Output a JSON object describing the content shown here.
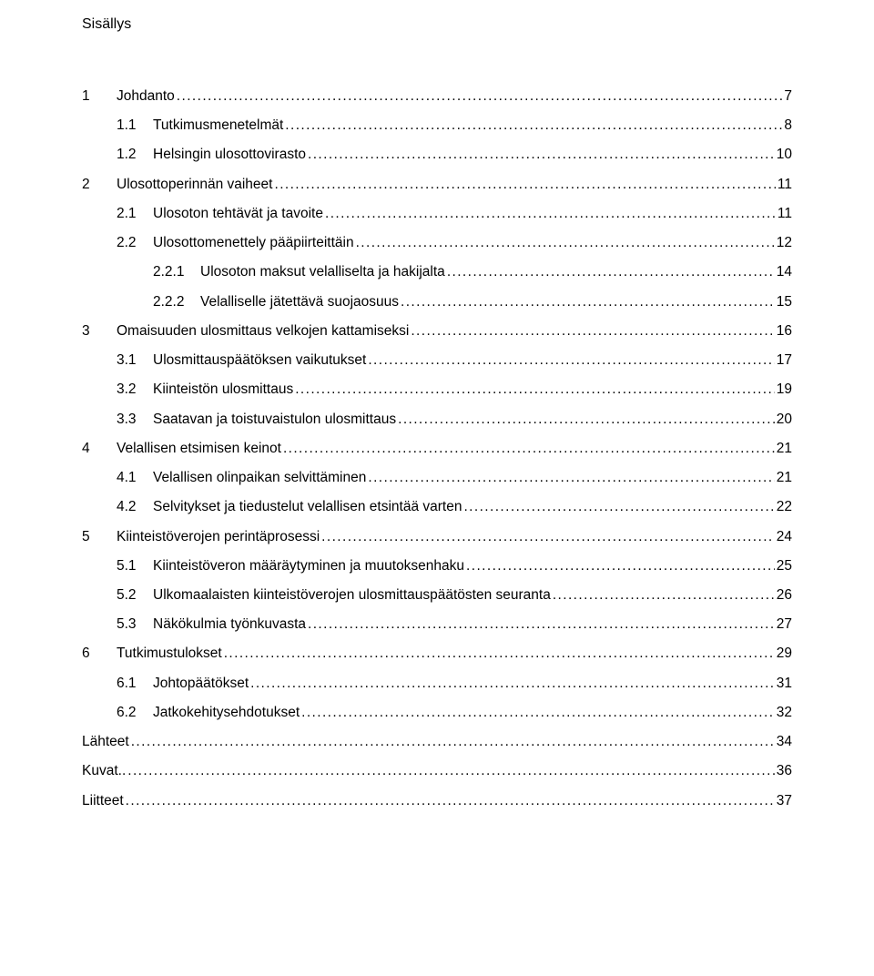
{
  "title": "Sisällys",
  "entries": [
    {
      "level": 1,
      "num": "1",
      "label": "Johdanto",
      "page": "7"
    },
    {
      "level": 2,
      "num": "1.1",
      "label": "Tutkimusmenetelmät",
      "page": "8"
    },
    {
      "level": 2,
      "num": "1.2",
      "label": "Helsingin ulosottovirasto",
      "page": "10"
    },
    {
      "level": 1,
      "num": "2",
      "label": "Ulosottoperinnän vaiheet",
      "page": "11"
    },
    {
      "level": 2,
      "num": "2.1",
      "label": "Ulosoton tehtävät ja tavoite",
      "page": "11"
    },
    {
      "level": 2,
      "num": "2.2",
      "label": "Ulosottomenettely pääpiirteittäin",
      "page": "12"
    },
    {
      "level": 3,
      "num": "2.2.1",
      "label": "Ulosoton maksut velalliselta ja hakijalta",
      "page": "14"
    },
    {
      "level": 3,
      "num": "2.2.2",
      "label": "Velalliselle jätettävä suojaosuus",
      "page": "15"
    },
    {
      "level": 1,
      "num": "3",
      "label": "Omaisuuden ulosmittaus velkojen kattamiseksi",
      "page": "16"
    },
    {
      "level": 2,
      "num": "3.1",
      "label": "Ulosmittauspäätöksen vaikutukset",
      "page": "17"
    },
    {
      "level": 2,
      "num": "3.2",
      "label": "Kiinteistön ulosmittaus",
      "page": "19"
    },
    {
      "level": 2,
      "num": "3.3",
      "label": "Saatavan ja toistuvaistulon ulosmittaus",
      "page": "20"
    },
    {
      "level": 1,
      "num": "4",
      "label": "Velallisen etsimisen keinot",
      "page": "21"
    },
    {
      "level": 2,
      "num": "4.1",
      "label": "Velallisen olinpaikan selvittäminen",
      "page": "21"
    },
    {
      "level": 2,
      "num": "4.2",
      "label": "Selvitykset ja tiedustelut velallisen etsintää varten",
      "page": "22"
    },
    {
      "level": 1,
      "num": "5",
      "label": "Kiinteistöverojen perintäprosessi",
      "page": "24"
    },
    {
      "level": 2,
      "num": "5.1",
      "label": "Kiinteistöveron määräytyminen ja muutoksenhaku",
      "page": "25"
    },
    {
      "level": 2,
      "num": "5.2",
      "label": "Ulkomaalaisten kiinteistöverojen ulosmittauspäätösten seuranta",
      "page": "26"
    },
    {
      "level": 2,
      "num": "5.3",
      "label": "Näkökulmia työnkuvasta",
      "page": "27"
    },
    {
      "level": 1,
      "num": "6",
      "label": "Tutkimustulokset",
      "page": "29"
    },
    {
      "level": 2,
      "num": "6.1",
      "label": "Johtopäätökset",
      "page": "31"
    },
    {
      "level": 2,
      "num": "6.2",
      "label": "Jatkokehitysehdotukset",
      "page": "32"
    },
    {
      "level": 0,
      "num": "",
      "label": "Lähteet",
      "page": "34"
    },
    {
      "level": 0,
      "num": "",
      "label": "Kuvat..",
      "page": "36"
    },
    {
      "level": 0,
      "num": "",
      "label": "Liitteet",
      "page": "37"
    }
  ],
  "colors": {
    "text": "#000000",
    "background": "#ffffff"
  },
  "typography": {
    "font_family": "Trebuchet MS",
    "body_size_pt": 12,
    "line_height": 2.08
  }
}
